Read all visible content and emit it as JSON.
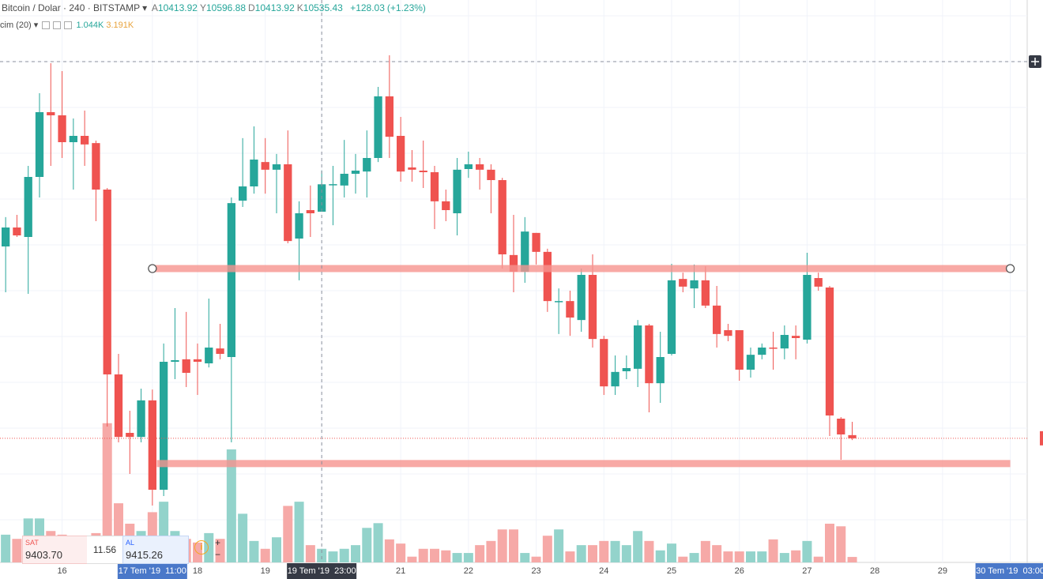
{
  "header": {
    "symbol": "Bitcoin / Dolar · 240 · BITSTAMP",
    "ohlc": [
      {
        "label": "A",
        "value": 10413.92
      },
      {
        "label": "Y",
        "value": 10596.88
      },
      {
        "label": "D",
        "value": 10413.92
      },
      {
        "label": "K",
        "value": 10535.43
      }
    ],
    "change": "+128.03",
    "change_pct": "(+1.23%)",
    "volume_label": "cim (20)",
    "volume_last": "1.044K",
    "volume_ma": "3.191K"
  },
  "trade_panel": {
    "sell_label": "SAT",
    "sell_price": "9403.70",
    "spread": "11.56",
    "buy_label": "AL",
    "buy_price": "9415.26"
  },
  "chart_data": {
    "type": "candlestick",
    "categories": [
      null,
      null,
      null,
      null,
      null,
      "16",
      null,
      null,
      null,
      null,
      null,
      null,
      null,
      "17 Tem '19  11:00",
      null,
      null,
      null,
      "18",
      null,
      null,
      null,
      null,
      null,
      "19",
      null,
      null,
      null,
      null,
      "19 Tem '19  23:00",
      null,
      null,
      null,
      null,
      null,
      null,
      "21",
      null,
      null,
      null,
      null,
      null,
      "22",
      null,
      null,
      null,
      null,
      null,
      "23",
      null,
      null,
      null,
      null,
      null,
      "24",
      null,
      null,
      null,
      null,
      null,
      "25",
      null,
      null,
      null,
      null,
      null,
      "26",
      null,
      null,
      null,
      null,
      null,
      "27",
      null,
      null,
      null,
      null,
      null,
      "28",
      null,
      null,
      null,
      null,
      null,
      "29",
      null,
      null,
      null,
      null,
      null,
      "30 Tem '19  03:00",
      null
    ],
    "open": [
      10260,
      10344,
      10302,
      10568,
      10855,
      10841,
      10722,
      10750,
      10718,
      10512,
      9693,
      9434,
      9416,
      9578,
      9182,
      9749,
      9760,
      9760,
      9742,
      9808,
      9770,
      10463,
      10526,
      10634,
      10600,
      10624,
      10295,
      10421,
      10413.92,
      10533,
      10530,
      10582,
      10592,
      10652,
      10925,
      10750,
      10610,
      10596,
      10589,
      10460,
      10407,
      10603,
      10624,
      10600,
      10554,
      10222,
      10148,
      10320,
      10236,
      10015,
      10018,
      9934,
      10134,
      9850,
      9640,
      9707,
      9718,
      9910,
      9654,
      9784,
      10116,
      10074,
      10110,
      9998,
      9889,
      9889,
      9714,
      9780,
      9812,
      9808,
      9864,
      9847,
      10120,
      10078,
      9497,
      9424,
      null,
      null,
      null,
      null,
      null,
      null,
      null,
      null,
      null,
      null,
      null,
      null,
      null,
      null,
      null
    ],
    "high": [
      10390,
      10400,
      10617,
      10939,
      11072,
      11037,
      10827,
      10862,
      10729,
      10519,
      9784,
      9532,
      9630,
      9626,
      9830,
      9987,
      9970,
      9830,
      10029,
      9917,
      10477,
      10740,
      10792,
      10740,
      10670,
      10774,
      10460,
      10530,
      10596.88,
      10617,
      10732,
      10670,
      10774,
      10967,
      11107,
      10834,
      10687,
      10729,
      10617,
      10512,
      10652,
      10680,
      10652,
      10624,
      10564,
      10400,
      10390,
      10320,
      10250,
      10074,
      10064,
      10162,
      10225,
      9864,
      9777,
      9777,
      9934,
      9917,
      9882,
      10183,
      10144,
      10180,
      10172,
      10085,
      9917,
      9889,
      9812,
      9830,
      9882,
      9910,
      9910,
      10232,
      10144,
      10085,
      9504,
      9483,
      null,
      null,
      null,
      null,
      null,
      null,
      null,
      null,
      null,
      null,
      null,
      null,
      null,
      null,
      null
    ],
    "low": [
      10057,
      10302,
      10050,
      10477,
      10617,
      10652,
      10512,
      10617,
      10372,
      9462,
      9392,
      9252,
      9392,
      9112,
      9154,
      9672,
      9637,
      9602,
      9724,
      9760,
      9392,
      10435,
      10494,
      10494,
      10407,
      10274,
      10110,
      10302,
      10413.92,
      10354,
      10477,
      10494,
      10477,
      10634,
      10652,
      10547,
      10547,
      10519,
      10337,
      10372,
      10309,
      10564,
      10512,
      10407,
      10162,
      10057,
      10099,
      10180,
      9970,
      9872,
      9864,
      9882,
      9812,
      9602,
      9602,
      9672,
      9637,
      9525,
      9567,
      9777,
      10057,
      9987,
      9987,
      9812,
      9840,
      9665,
      9679,
      9760,
      9714,
      9760,
      9760,
      9830,
      10064,
      9420,
      9315,
      9402,
      null,
      null,
      null,
      null,
      null,
      null,
      null,
      null,
      null,
      null,
      null,
      null,
      null,
      null,
      null
    ],
    "close": [
      10344,
      10309,
      10568,
      10855,
      10841,
      10722,
      10750,
      10712,
      10512,
      9693,
      9416,
      9416,
      9578,
      9182,
      9749,
      9756,
      9700,
      9749,
      9812,
      9784,
      10452,
      10526,
      10645,
      10600,
      10624,
      10284,
      10407,
      10407,
      10535.43,
      10536,
      10582,
      10596,
      10652,
      10925,
      10746,
      10592,
      10600,
      10589,
      10460,
      10421,
      10600,
      10624,
      10600,
      10554,
      10225,
      10148,
      10326,
      10236,
      10018,
      10018,
      9945,
      10134,
      9850,
      9640,
      9704,
      9721,
      9910,
      9654,
      9770,
      10110,
      10082,
      10110,
      9998,
      9872,
      9864,
      9714,
      9780,
      9812,
      9808,
      9868,
      9854,
      10134,
      10082,
      9511,
      9427,
      9410,
      null,
      null,
      null,
      null,
      null,
      null,
      null,
      null,
      null,
      null,
      null,
      null,
      null,
      null,
      null
    ],
    "volume": [
      5.3,
      4.5,
      8.4,
      8.4,
      6.0,
      5.3,
      3.8,
      4.5,
      5.6,
      26.6,
      11.3,
      7.4,
      6.0,
      9.6,
      11.6,
      6.0,
      4.5,
      3.8,
      5.6,
      4.5,
      21.6,
      9.3,
      4.1,
      2.6,
      4.8,
      10.8,
      11.6,
      3.3,
      2.6,
      2.1,
      2.6,
      3.3,
      6.6,
      7.5,
      4.4,
      3.6,
      1.1,
      2.6,
      2.6,
      2.3,
      1.8,
      1.8,
      3.3,
      4.1,
      6.3,
      6.3,
      1.8,
      1.1,
      5.1,
      6.3,
      2.1,
      3.3,
      3.3,
      4.1,
      4.1,
      3.3,
      6.0,
      4.1,
      2.3,
      3.6,
      1.1,
      1.8,
      4.1,
      3.3,
      2.1,
      2.1,
      2.1,
      2.1,
      4.4,
      1.8,
      2.3,
      4.1,
      1.1,
      7.4,
      6.9,
      1.044,
      null,
      null,
      null,
      null,
      null,
      null,
      null,
      null,
      null,
      null,
      null,
      null,
      null,
      null,
      null
    ],
    "ylim": [
      8860,
      11352
    ],
    "volume_ylim": [
      0,
      32
    ],
    "up_color": "#26a69a",
    "down_color": "#ef5350",
    "volume_up_color": "#93d3cb",
    "volume_down_color": "#f6a9a7",
    "levels": [
      {
        "price": 10162,
        "from": 13,
        "to": 89,
        "handles": true,
        "color": "#f6948f"
      },
      {
        "price": 9298,
        "from": 13.4,
        "to": 89,
        "handles": false,
        "color": "#f6948f"
      }
    ],
    "crosshair": {
      "index": 28,
      "price": 11079
    },
    "grid": true
  }
}
